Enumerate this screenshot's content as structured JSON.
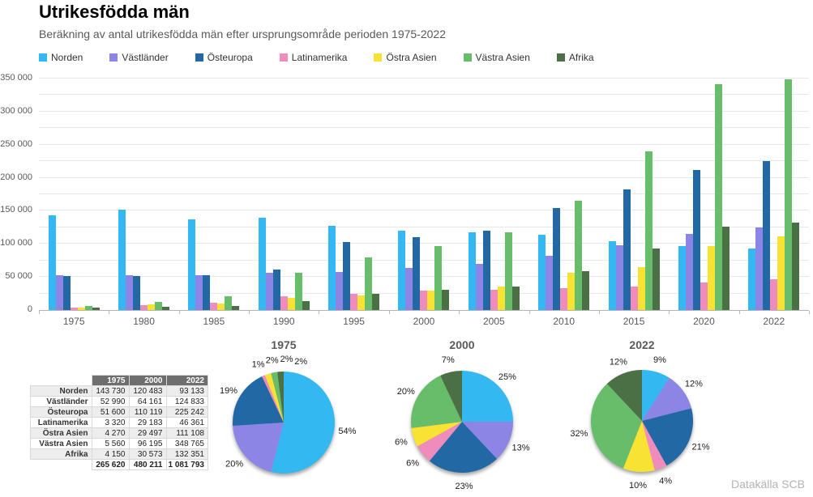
{
  "header": {
    "title": "Utrikesfödda män",
    "subtitle": "Beräkning av antal utrikesfödda män efter ursprungsområde perioden 1975-2022"
  },
  "source": "Datakälla SCB",
  "legend": {
    "items": [
      {
        "label": "Norden",
        "color": "#33b8f1"
      },
      {
        "label": "Västländer",
        "color": "#8d85e6"
      },
      {
        "label": "Östeuropa",
        "color": "#2268a5"
      },
      {
        "label": "Latinamerika",
        "color": "#f08cbc"
      },
      {
        "label": "Östra Asien",
        "color": "#f8e335"
      },
      {
        "label": "Västra Asien",
        "color": "#67bd6a"
      },
      {
        "label": "Afrika",
        "color": "#4c7046"
      }
    ]
  },
  "chart_data": [
    {
      "type": "bar",
      "title": "Utrikesfödda män",
      "categories": [
        "1975",
        "1980",
        "1985",
        "1990",
        "1995",
        "2000",
        "2005",
        "2010",
        "2015",
        "2020",
        "2022"
      ],
      "series": [
        {
          "name": "Norden",
          "color": "#33b8f1",
          "values": [
            143730,
            152000,
            137000,
            140000,
            127000,
            120483,
            118000,
            114000,
            104000,
            97000,
            93133
          ]
        },
        {
          "name": "Västländer",
          "color": "#8d85e6",
          "values": [
            52990,
            53000,
            53000,
            56000,
            58000,
            64161,
            70000,
            82000,
            98000,
            115000,
            124833
          ]
        },
        {
          "name": "Östeuropa",
          "color": "#2268a5",
          "values": [
            51600,
            52000,
            53000,
            61000,
            103000,
            110119,
            120000,
            154000,
            182000,
            212000,
            225242
          ]
        },
        {
          "name": "Latinamerika",
          "color": "#f08cbc",
          "values": [
            3320,
            7000,
            11000,
            21000,
            24000,
            29183,
            30000,
            33000,
            36000,
            41000,
            46361
          ]
        },
        {
          "name": "Östra Asien",
          "color": "#f8e335",
          "values": [
            4270,
            8000,
            10000,
            18000,
            22000,
            29497,
            35000,
            56000,
            65000,
            97000,
            111108
          ]
        },
        {
          "name": "Västra Asien",
          "color": "#67bd6a",
          "values": [
            5560,
            12000,
            21000,
            56000,
            79000,
            96195,
            117000,
            165000,
            240000,
            342000,
            348765
          ]
        },
        {
          "name": "Afrika",
          "color": "#4c7046",
          "values": [
            4150,
            4500,
            6000,
            13000,
            25000,
            30573,
            35000,
            59000,
            93000,
            126000,
            132351
          ]
        }
      ],
      "ylim": [
        0,
        350000
      ],
      "ytick_step": 50000,
      "grid_step": 25000,
      "grid": true,
      "legend_position": "top"
    },
    {
      "type": "pie",
      "title": "1975",
      "labels": [
        "Norden",
        "Västländer",
        "Östeuropa",
        "Latinamerika",
        "Östra Asien",
        "Västra Asien",
        "Afrika"
      ],
      "values": [
        54,
        20,
        19,
        1,
        2,
        2,
        2
      ],
      "unit": "%"
    },
    {
      "type": "pie",
      "title": "2000",
      "labels": [
        "Norden",
        "Västländer",
        "Östeuropa",
        "Latinamerika",
        "Östra Asien",
        "Västra Asien",
        "Afrika"
      ],
      "values": [
        25,
        13,
        23,
        6,
        6,
        20,
        7
      ],
      "unit": "%"
    },
    {
      "type": "pie",
      "title": "2022",
      "labels": [
        "Norden",
        "Västländer",
        "Östeuropa",
        "Latinamerika",
        "Östra Asien",
        "Västra Asien",
        "Afrika"
      ],
      "values": [
        9,
        12,
        21,
        4,
        10,
        32,
        12
      ],
      "unit": "%"
    },
    {
      "type": "table",
      "columns": [
        "",
        "1975",
        "2000",
        "2022"
      ],
      "rows": [
        {
          "label": "Norden",
          "values": [
            "143 730",
            "120 483",
            "93 133"
          ]
        },
        {
          "label": "Västländer",
          "values": [
            "52 990",
            "64 161",
            "124 833"
          ]
        },
        {
          "label": "Östeuropa",
          "values": [
            "51 600",
            "110 119",
            "225 242"
          ]
        },
        {
          "label": "Latinamerika",
          "values": [
            "3 320",
            "29 183",
            "46 361"
          ]
        },
        {
          "label": "Östra Asien",
          "values": [
            "4 270",
            "29 497",
            "111 108"
          ]
        },
        {
          "label": "Västra Asien",
          "values": [
            "5 560",
            "96 195",
            "348 765"
          ]
        },
        {
          "label": "Afrika",
          "values": [
            "4 150",
            "30 573",
            "132 351"
          ]
        }
      ],
      "totals": [
        "265 620",
        "480 211",
        "1 081 793"
      ]
    }
  ]
}
